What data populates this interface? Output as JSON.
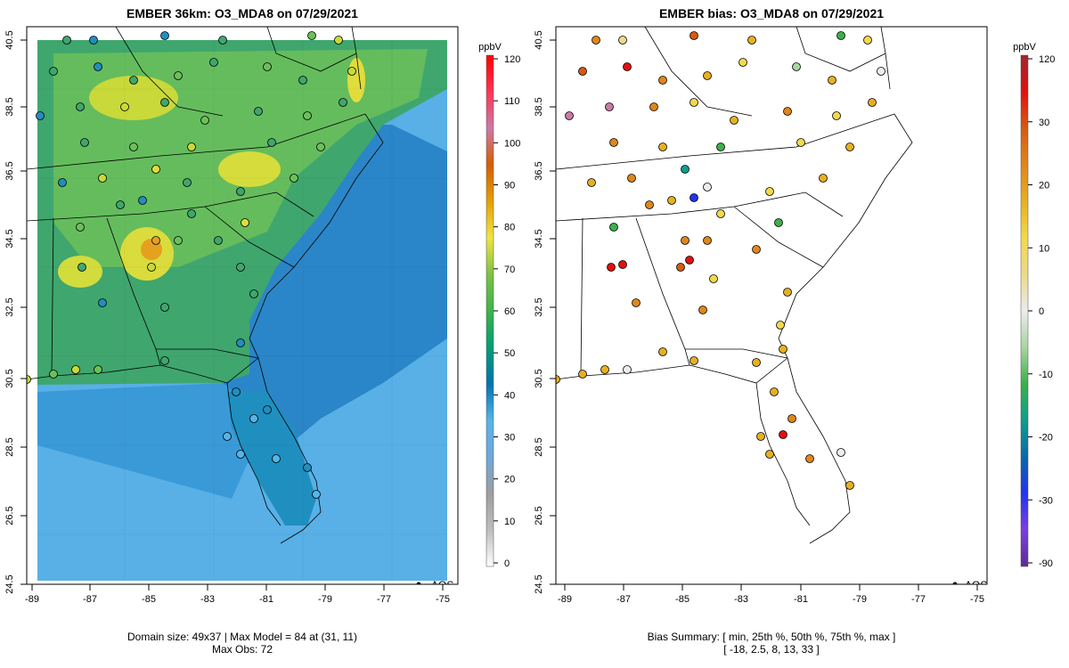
{
  "colors": {
    "land_outline": "#000000",
    "frame": "#000000",
    "marker_outline": "#000000"
  },
  "left_panel": {
    "title": "EMBER 36km: O3_MDA8 on 07/29/2021",
    "caption_line1": "Domain size: 49x37 | Max Model = 84 at (31, 11)",
    "caption_line2": "Max Obs: 72",
    "legend_label": "AQS",
    "colorbar": {
      "unit": "ppbV",
      "ticks": [
        "0",
        "10",
        "20",
        "30",
        "40",
        "50",
        "60",
        "70",
        "80",
        "90",
        "100",
        "110",
        "120"
      ],
      "colors": [
        "#ffffff",
        "#bdbdbd",
        "#9e9e9e",
        "#6fa8dc",
        "#56b4e9",
        "#0072b2",
        "#009e73",
        "#3cb44b",
        "#7cc242",
        "#f0e442",
        "#e69f00",
        "#d55e00",
        "#cc79a7",
        "#ff3355",
        "#ff0000"
      ]
    }
  },
  "right_panel": {
    "title": "EMBER bias: O3_MDA8 on 07/29/2021",
    "caption_line1": "Bias Summary: [ min, 25th %, 50th %, 75th %, max ]",
    "caption_line2": "[ -18,  2.5,  8,  13,  33 ]",
    "legend_label": "AQS",
    "colorbar": {
      "unit": "ppbV",
      "ticks": [
        "-90",
        "-30",
        "-20",
        "-10",
        "0",
        "10",
        "20",
        "30",
        "120"
      ],
      "colors": [
        "#5e2b97",
        "#7b3fe4",
        "#2233ee",
        "#0a6aa8",
        "#0e9e8e",
        "#3bb04a",
        "#a8d5a0",
        "#ececec",
        "#ecd98a",
        "#f3d94a",
        "#e6b020",
        "#e0861a",
        "#d65a12",
        "#e01010",
        "#a0282c"
      ]
    }
  },
  "axes": {
    "x_ticks": [
      "-89",
      "-87",
      "-85",
      "-83",
      "-81",
      "-79",
      "-77",
      "-75"
    ],
    "y_ticks": [
      "24.5",
      "26.5",
      "28.5",
      "30.5",
      "32.5",
      "34.5",
      "36.5",
      "38.5",
      "40.5"
    ]
  }
}
